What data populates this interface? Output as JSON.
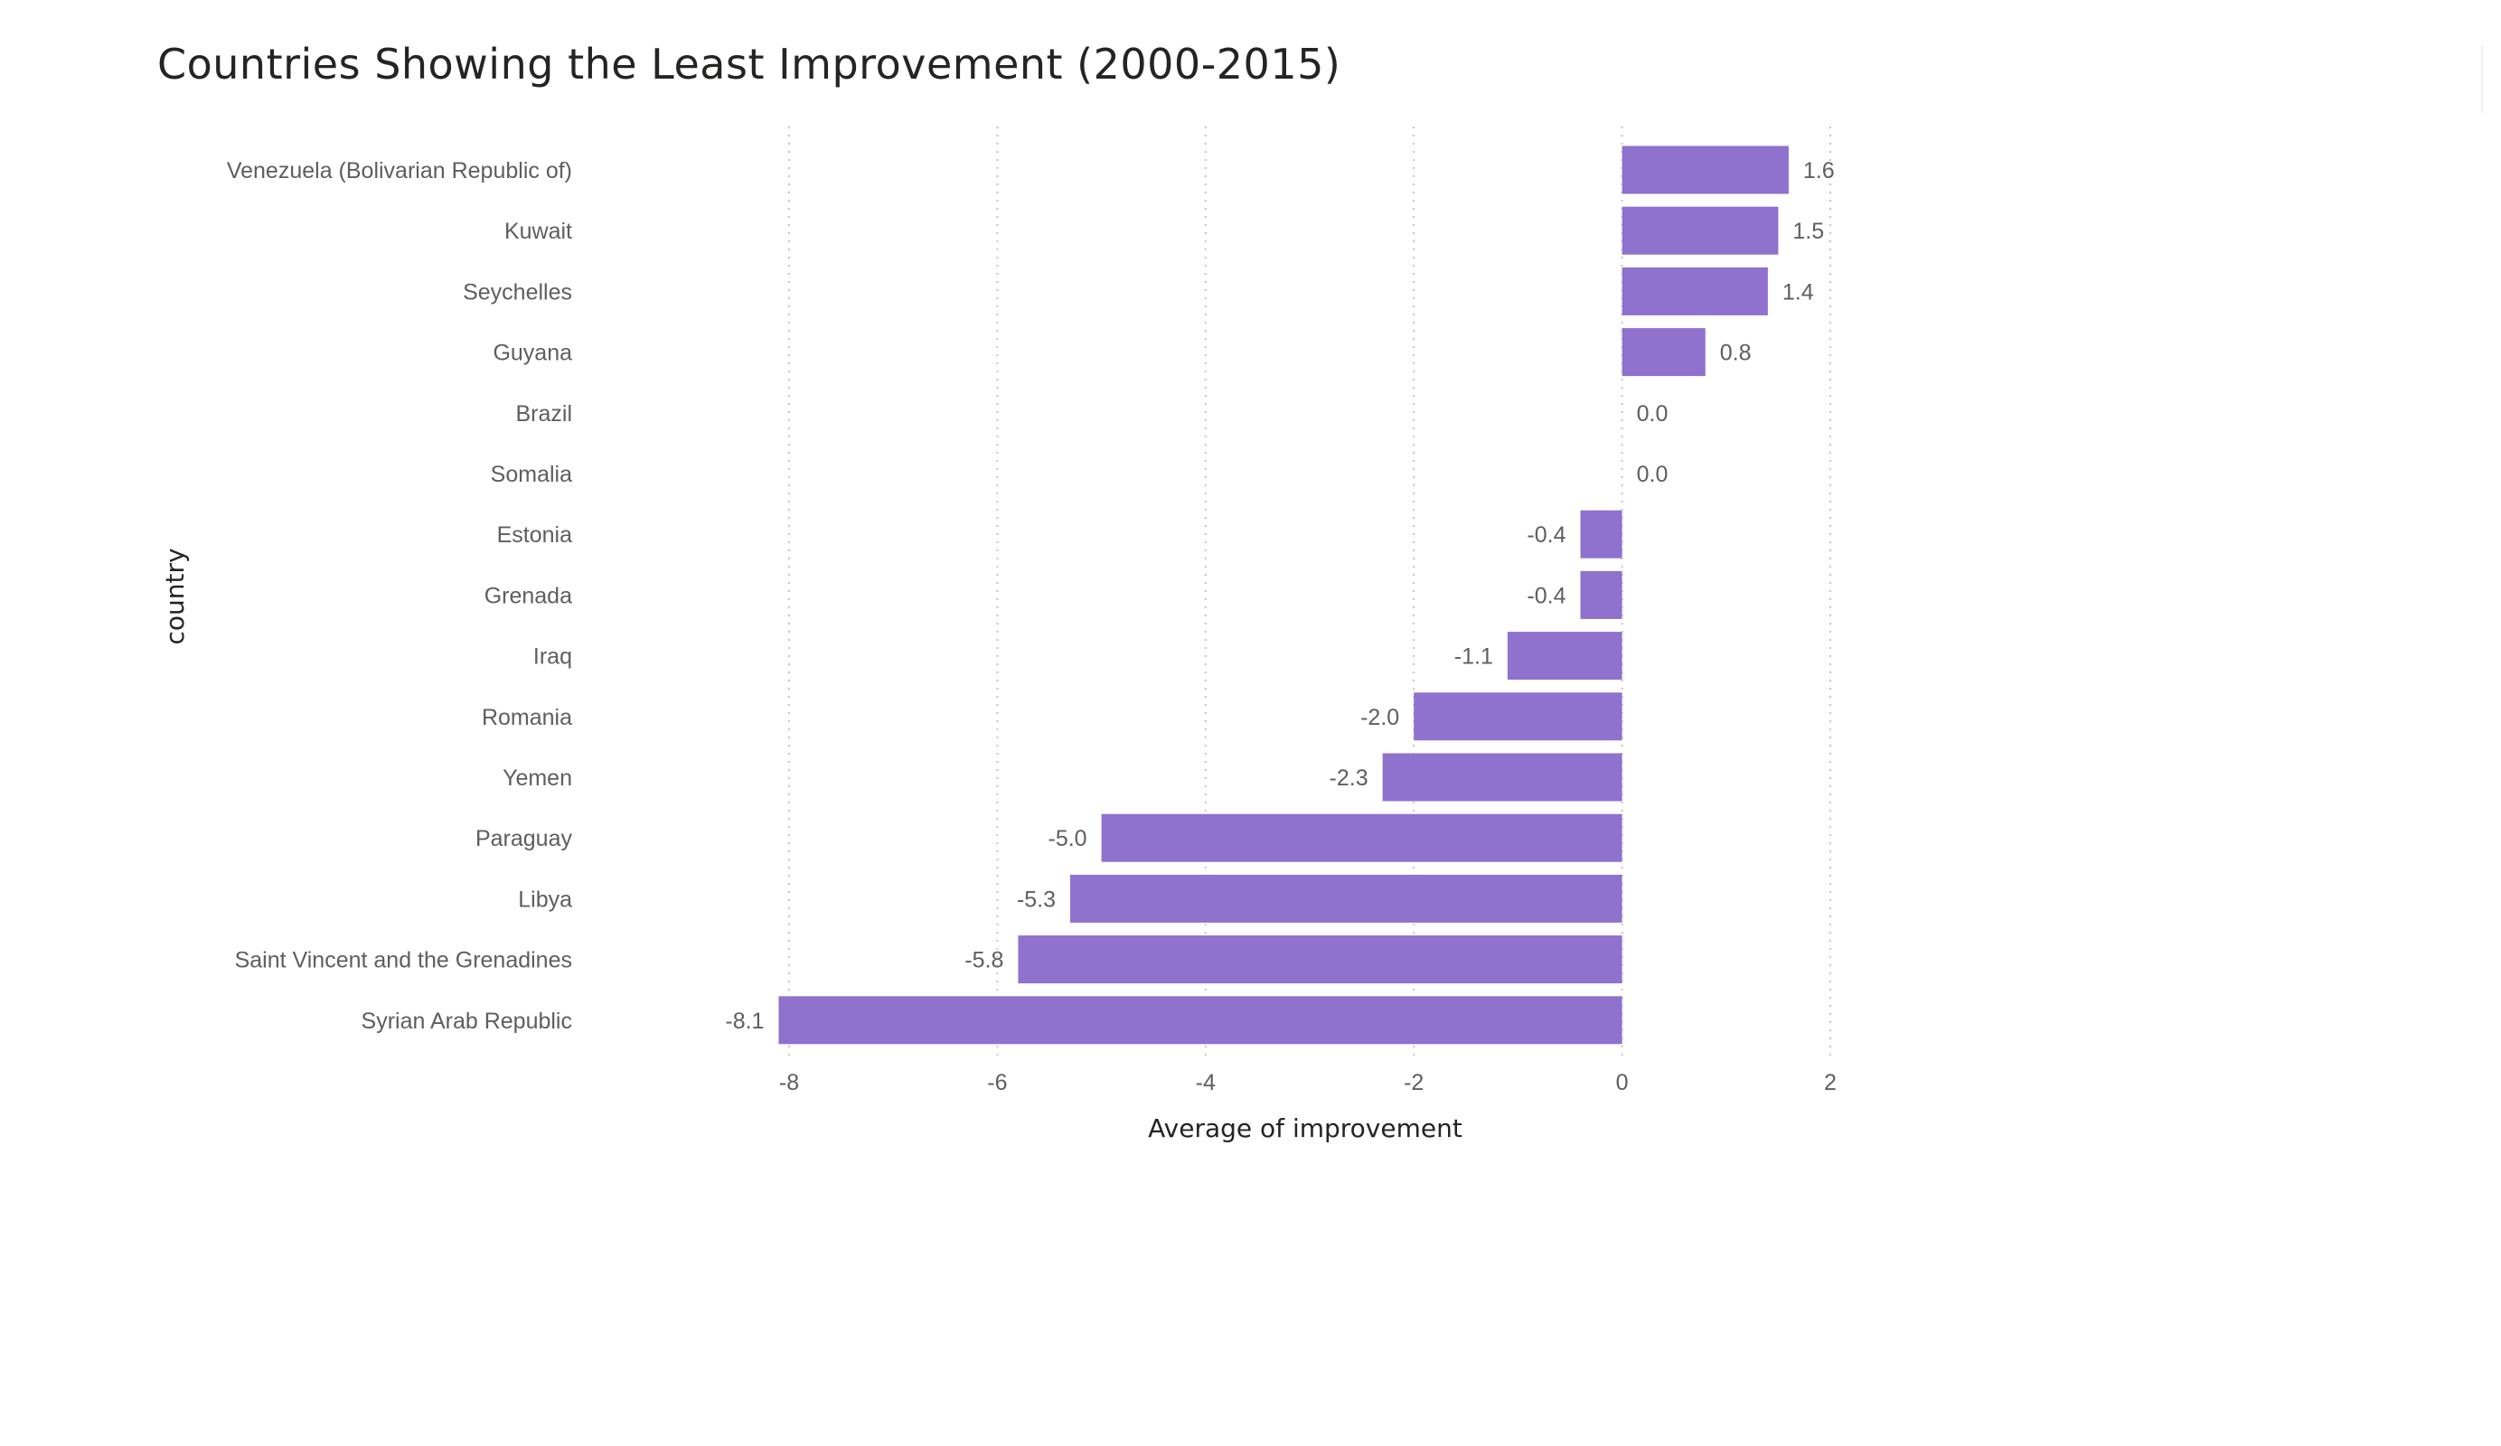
{
  "chart_data": {
    "type": "bar",
    "orientation": "horizontal",
    "title": "Countries Showing the Least Improvement (2000-2015)",
    "xlabel": "Average of improvement",
    "ylabel": "country",
    "categories": [
      "Venezuela (Bolivarian Republic of)",
      "Kuwait",
      "Seychelles",
      "Guyana",
      "Brazil",
      "Somalia",
      "Estonia",
      "Grenada",
      "Iraq",
      "Romania",
      "Yemen",
      "Paraguay",
      "Libya",
      "Saint Vincent and the Grenadines",
      "Syrian Arab Republic"
    ],
    "values": [
      1.6,
      1.5,
      1.4,
      0.8,
      0.0,
      0.0,
      -0.4,
      -0.4,
      -1.1,
      -2.0,
      -2.3,
      -5.0,
      -5.3,
      -5.8,
      -8.1
    ],
    "data_labels": [
      "1.6",
      "1.5",
      "1.4",
      "0.8",
      "0.0",
      "0.0",
      "-0.4",
      "-0.4",
      "-1.1",
      "-2.0",
      "-2.3",
      "-5.0",
      "-5.3",
      "-5.8",
      "-8.1"
    ],
    "xlim": [
      -8,
      2
    ],
    "xticks": [
      -8,
      -6,
      -4,
      -2,
      0,
      2
    ],
    "xtick_labels": [
      "-8",
      "-6",
      "-4",
      "-2",
      "0",
      "2"
    ],
    "grid": true,
    "legend": "none",
    "bar_color": "#8f71ce",
    "grid_color": "#c8c6c4"
  }
}
